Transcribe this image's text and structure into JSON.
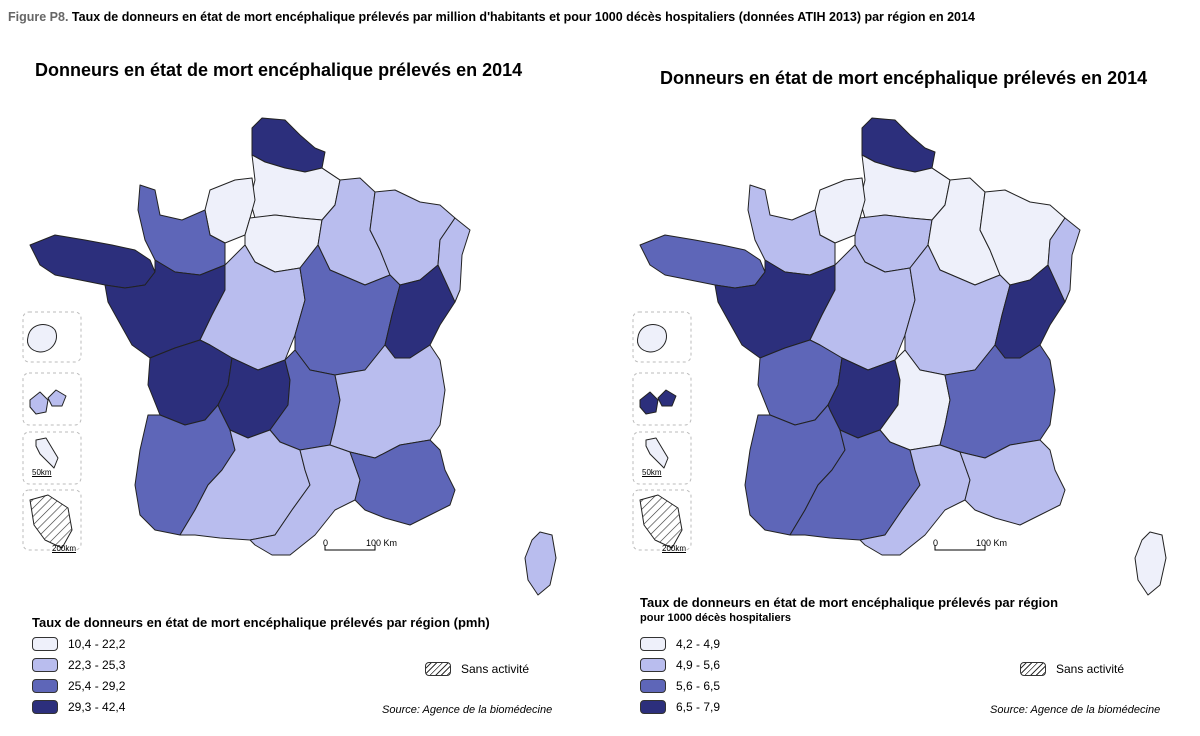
{
  "figure": {
    "label": "Figure P8.",
    "caption": "Taux de donneurs en état de mort encéphalique prélevés par million d'habitants et pour 1000 décès hospitaliers (données ATIH 2013) par région en 2014"
  },
  "colors": {
    "class1": "#eef0fa",
    "class2": "#b9bdee",
    "class3": "#5e66b8",
    "class4": "#2c2f7c"
  },
  "maps": {
    "left": {
      "title": "Donneurs en état de mort encéphalique prélevés en 2014",
      "legend_title": "Taux de donneurs en état de mort encéphalique prélevés par région (pmh)",
      "legend_subtitle": "",
      "classes": [
        {
          "label": "10,4 - 22,2",
          "color": "#eef0fa"
        },
        {
          "label": "22,3 - 25,3",
          "color": "#b9bdee"
        },
        {
          "label": "25,4 - 29,2",
          "color": "#5e66b8"
        },
        {
          "label": "29,3 - 42,4",
          "color": "#2c2f7c"
        }
      ],
      "no_activity": "Sans activité",
      "source": "Source: Agence de la biomédecine",
      "scale_zero": "0",
      "scale_end": "100 Km",
      "inset_scale_1": "50km",
      "inset_scale_2": "200km",
      "region_class": {
        "nord-pas-de-calais": 4,
        "picardie": 1,
        "haute-normandie": 1,
        "basse-normandie": 3,
        "ile-de-france": 1,
        "champagne-ardenne": 2,
        "lorraine": 2,
        "alsace": 2,
        "bretagne": 4,
        "pays-de-la-loire": 4,
        "centre": 2,
        "bourgogne": 3,
        "franche-comte": 4,
        "poitou-charentes": 4,
        "limousin": 4,
        "auvergne": 3,
        "rhone-alpes": 2,
        "aquitaine": 3,
        "midi-pyrenees": 2,
        "languedoc-roussillon": 2,
        "paca": 3,
        "corse": 2,
        "reunion": 1,
        "guadeloupe": 2,
        "martinique": 1,
        "guyane": 0
      }
    },
    "right": {
      "title": "Donneurs en état de mort encéphalique prélevés en 2014",
      "legend_title": "Taux de donneurs en état de mort encéphalique prélevés par région",
      "legend_subtitle": "pour 1000 décès hospitaliers",
      "classes": [
        {
          "label": "4,2 - 4,9",
          "color": "#eef0fa"
        },
        {
          "label": "4,9 - 5,6",
          "color": "#b9bdee"
        },
        {
          "label": "5,6 - 6,5",
          "color": "#5e66b8"
        },
        {
          "label": "6,5 - 7,9",
          "color": "#2c2f7c"
        }
      ],
      "no_activity": "Sans activité",
      "source": "Source: Agence de la biomédecine",
      "scale_zero": "0",
      "scale_end": "100 Km",
      "inset_scale_1": "50km",
      "inset_scale_2": "200km",
      "region_class": {
        "nord-pas-de-calais": 4,
        "picardie": 1,
        "haute-normandie": 1,
        "basse-normandie": 2,
        "ile-de-france": 2,
        "champagne-ardenne": 1,
        "lorraine": 1,
        "alsace": 2,
        "bretagne": 3,
        "pays-de-la-loire": 4,
        "centre": 2,
        "bourgogne": 2,
        "franche-comte": 4,
        "poitou-charentes": 3,
        "limousin": 4,
        "auvergne": 1,
        "rhone-alpes": 3,
        "aquitaine": 3,
        "midi-pyrenees": 3,
        "languedoc-roussillon": 2,
        "paca": 2,
        "corse": 1,
        "reunion": 1,
        "guadeloupe": 4,
        "martinique": 1,
        "guyane": 0
      }
    }
  }
}
